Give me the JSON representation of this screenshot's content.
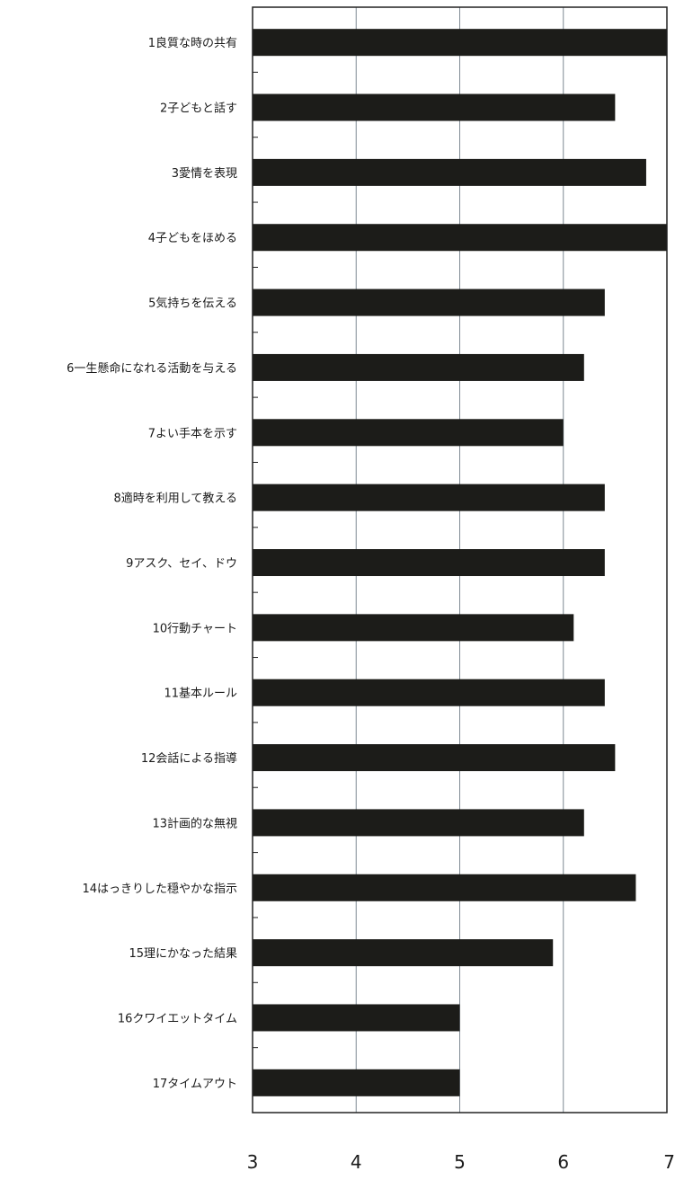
{
  "chart_data": {
    "type": "bar",
    "orientation": "horizontal",
    "categories": [
      "1良質な時の共有",
      "2子どもと話す",
      "3愛情を表現",
      "4子どもをほめる",
      "5気持ちを伝える",
      "6一生懸命になれる活動を与える",
      "7よい手本を示す",
      "8適時を利用して教える",
      "9アスク、セイ、ドウ",
      "10行動チャート",
      "11基本ルール",
      "12会話による指導",
      "13計画的な無視",
      "14はっきりした穏やかな指示",
      "15理にかなった結果",
      "16クワイエットタイム",
      "17タイムアウト"
    ],
    "values": [
      7.0,
      6.5,
      6.8,
      7.0,
      6.4,
      6.2,
      6.0,
      6.4,
      6.4,
      6.1,
      6.4,
      6.5,
      6.2,
      6.7,
      5.9,
      5.0,
      5.0
    ],
    "xlim": [
      3,
      7
    ],
    "xticks": [
      "3",
      "4",
      "5",
      "6",
      "7"
    ],
    "grid": "vertical",
    "title": "",
    "xlabel": "",
    "ylabel": "",
    "colors": {
      "bar": "#1c1c19",
      "grid": "#7f8a94",
      "axis": "#222222",
      "text": "#1a1a1a"
    }
  }
}
